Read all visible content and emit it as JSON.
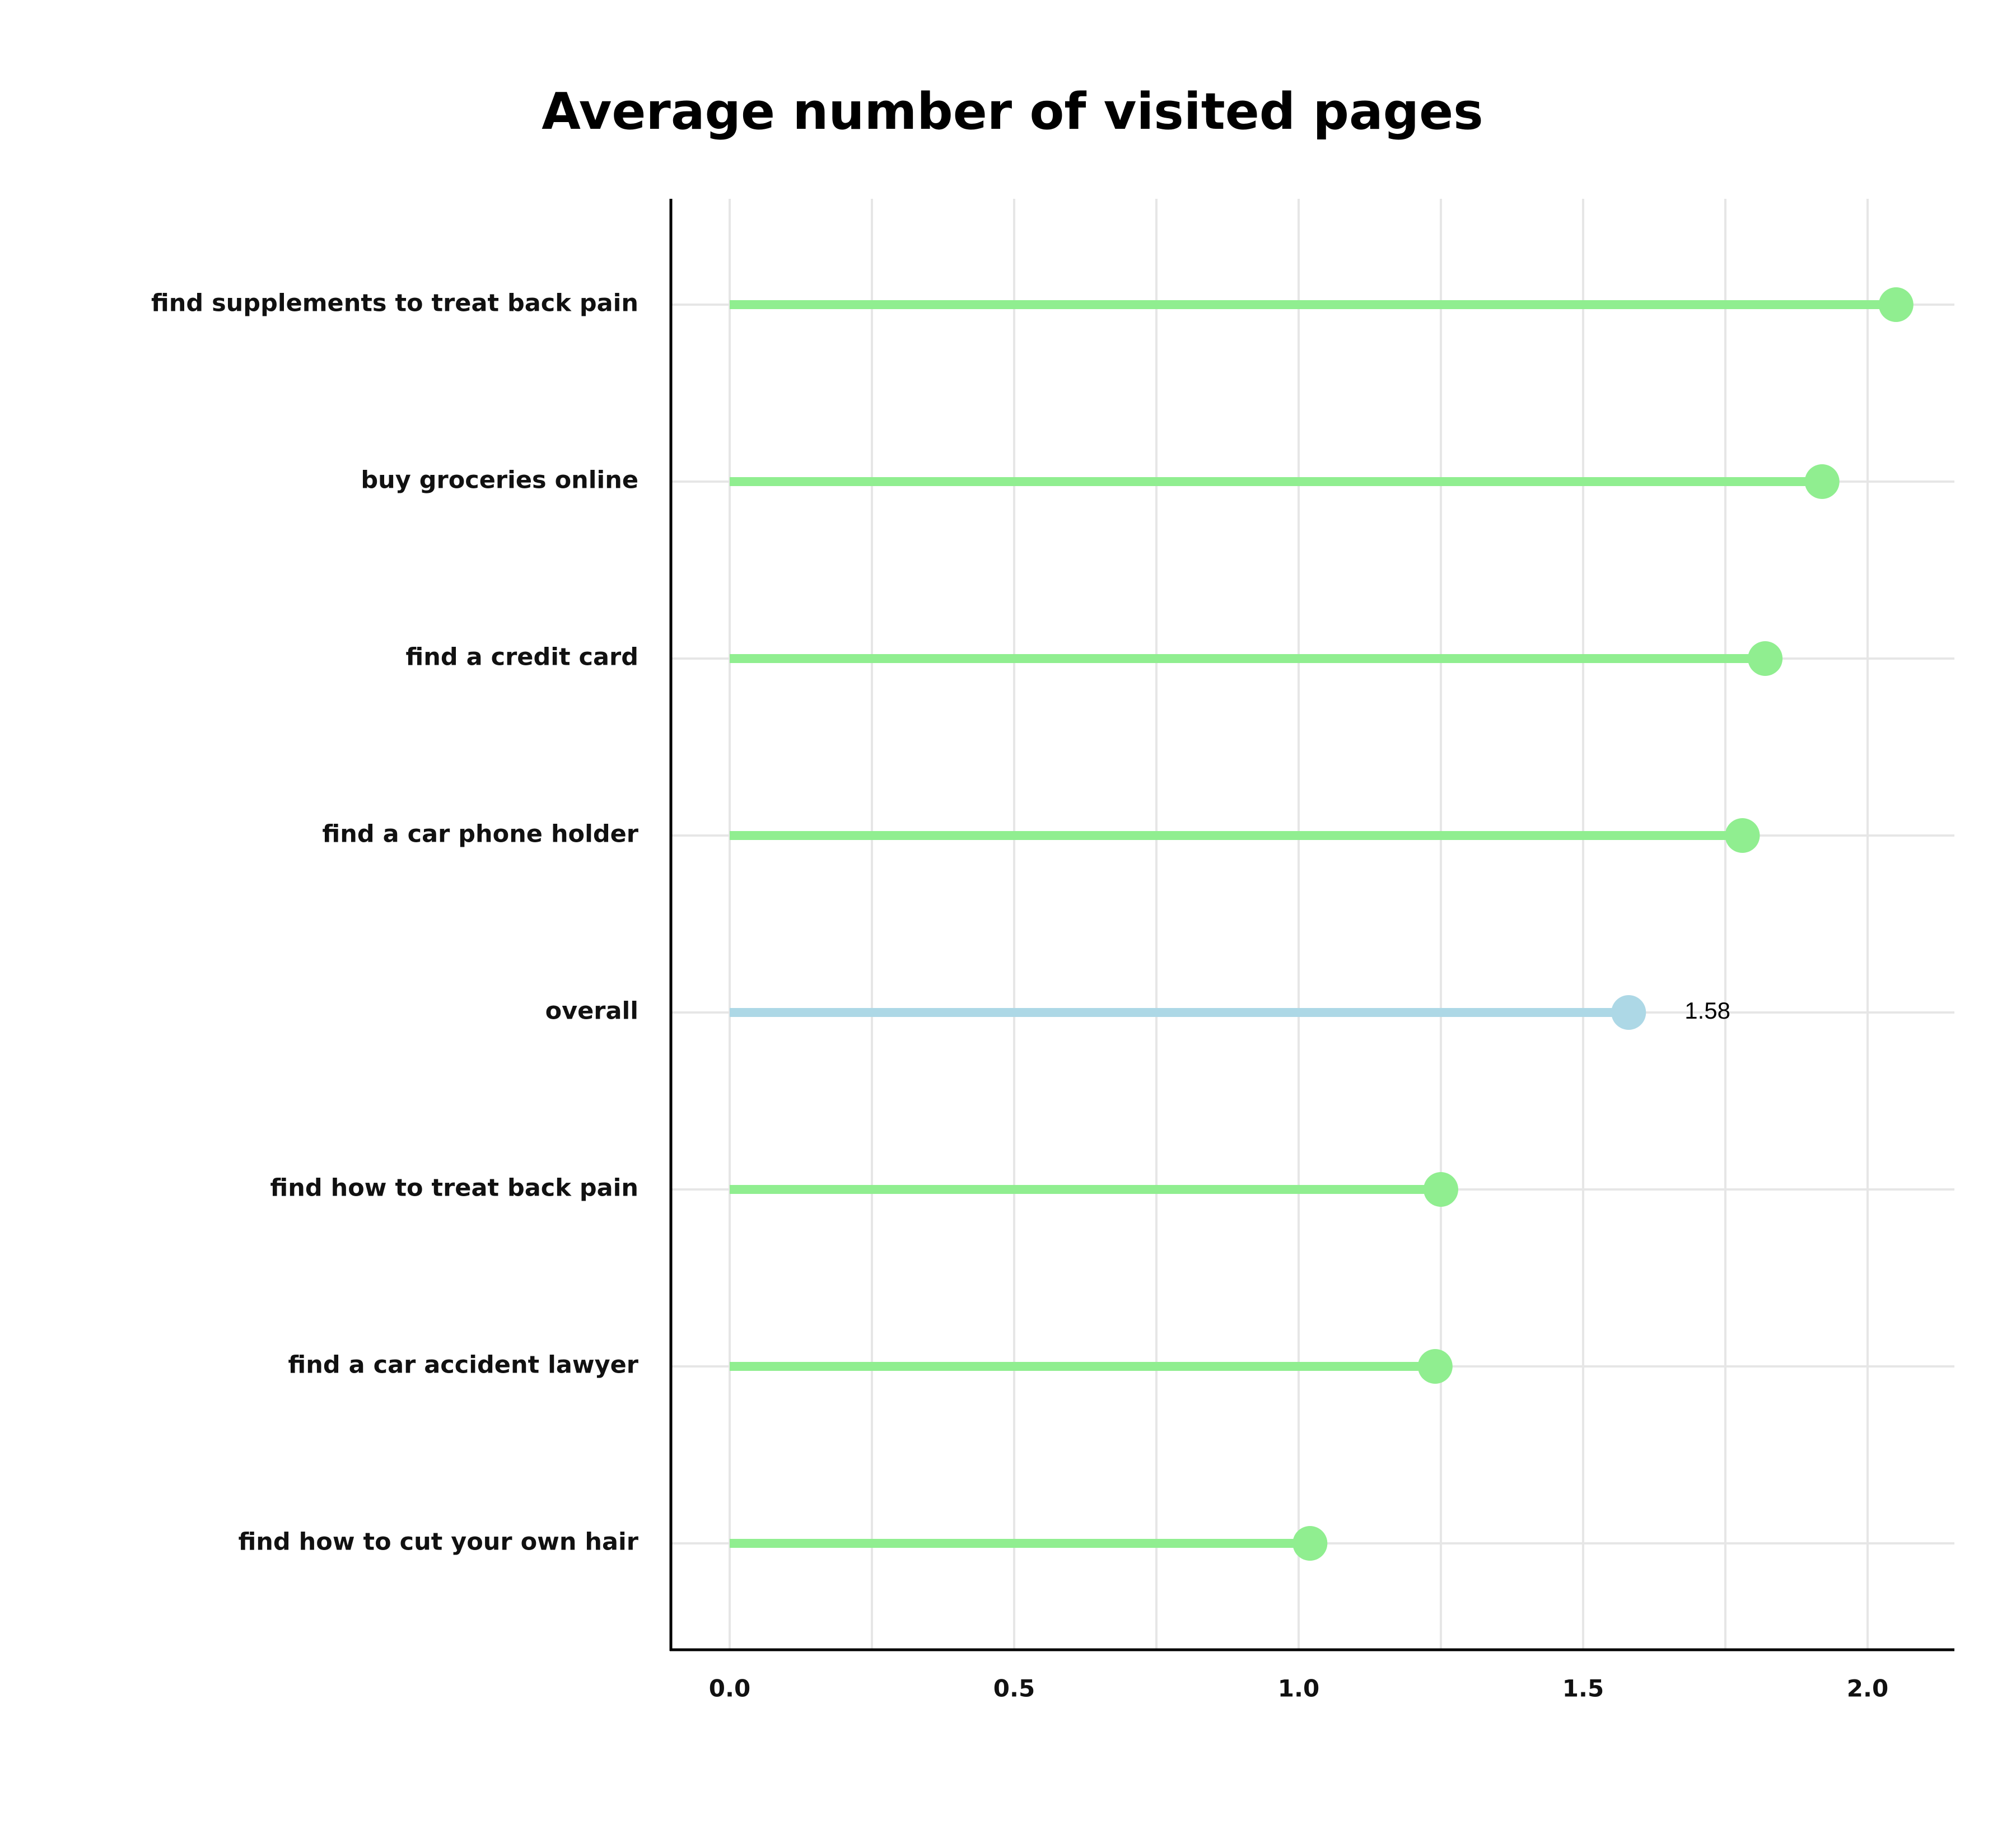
{
  "chart_data": {
    "type": "lollipop",
    "title": "Average number of visited pages",
    "xlabel": "",
    "ylabel": "",
    "xlim": [
      -0.1,
      2.15
    ],
    "x_ticks": [
      0.0,
      0.5,
      1.0,
      1.5,
      2.0
    ],
    "x_tick_labels": [
      "0.0",
      "0.5",
      "1.0",
      "1.5",
      "2.0"
    ],
    "grid": true,
    "categories": [
      "find supplements to treat back pain",
      "buy groceries online",
      "find a credit card",
      "find a car phone holder",
      "overall",
      "find how to treat back pain",
      "find a car accident lawyer",
      "find how to cut your own hair"
    ],
    "values": [
      2.05,
      1.92,
      1.82,
      1.78,
      1.58,
      1.25,
      1.24,
      1.02
    ],
    "colors": [
      "#90ee90",
      "#90ee90",
      "#90ee90",
      "#90ee90",
      "#add8e6",
      "#90ee90",
      "#90ee90",
      "#90ee90"
    ],
    "annotations": [
      {
        "category": "overall",
        "text": "1.58"
      }
    ]
  }
}
